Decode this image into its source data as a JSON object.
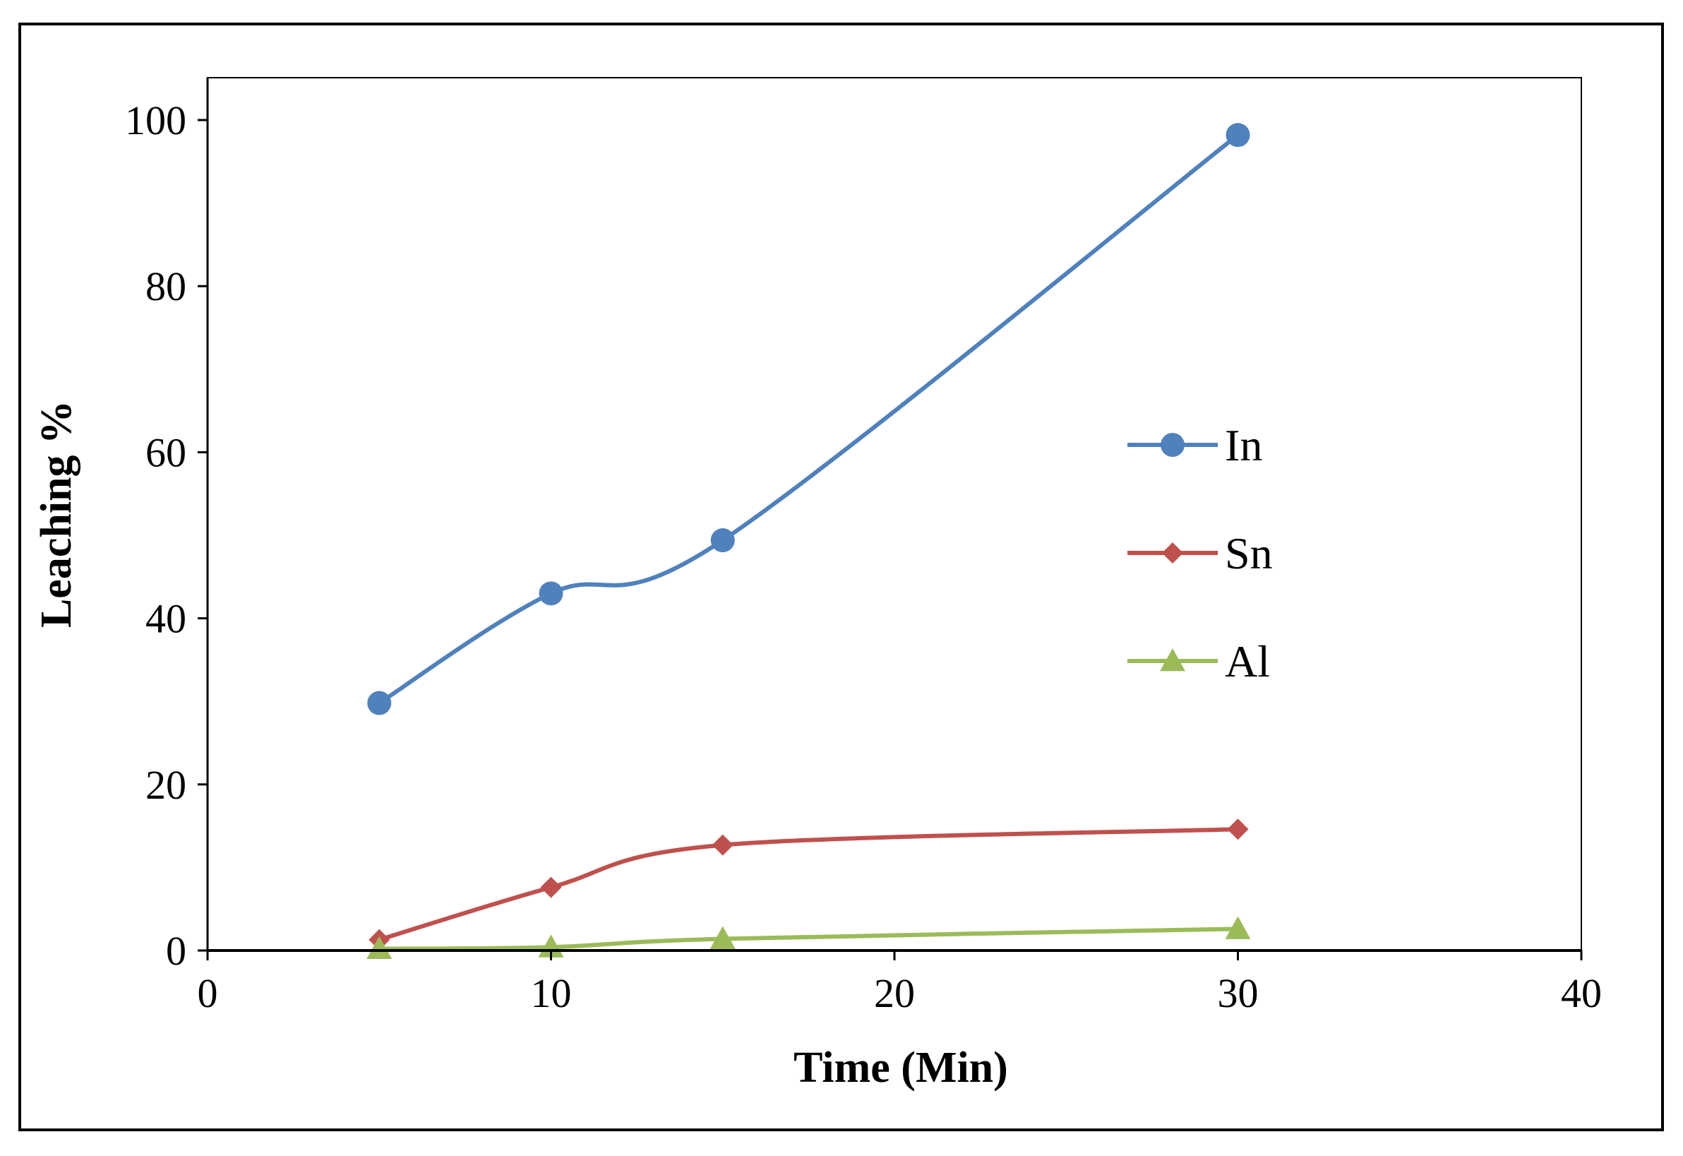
{
  "chart_data": {
    "type": "line",
    "title": "",
    "xlabel": "Time (Min)",
    "ylabel": "Leaching %",
    "xlim": [
      0,
      40
    ],
    "ylim": [
      0,
      105
    ],
    "xticks": [
      0,
      10,
      20,
      30,
      40
    ],
    "yticks": [
      0,
      20,
      40,
      60,
      80,
      100
    ],
    "grid": false,
    "legend_position": "right-center",
    "smooth": true,
    "series": [
      {
        "name": "In",
        "color": "#4F81BD",
        "marker": "circle",
        "x": [
          5,
          10,
          15,
          30
        ],
        "y": [
          29.8,
          43.0,
          49.4,
          98.2
        ]
      },
      {
        "name": "Sn",
        "color": "#C0504D",
        "marker": "diamond",
        "x": [
          5,
          10,
          15,
          30
        ],
        "y": [
          1.3,
          7.6,
          12.7,
          14.6
        ]
      },
      {
        "name": "Al",
        "color": "#9BBB59",
        "marker": "triangle",
        "x": [
          5,
          10,
          15,
          30
        ],
        "y": [
          0.2,
          0.4,
          1.4,
          2.6
        ]
      }
    ]
  }
}
